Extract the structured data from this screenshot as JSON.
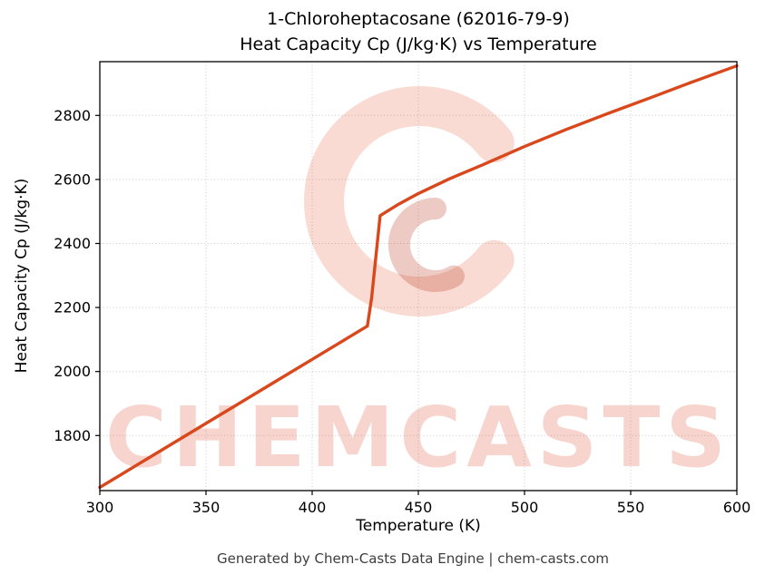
{
  "page": {
    "title_line1": "1-Chloroheptacosane (62016-79-9)",
    "title_line2": "Heat Capacity Cp (J/kg·K) vs Temperature",
    "footer": "Generated by Chem-Casts Data Engine | chem-casts.com",
    "watermark_text": "CHEMCASTS"
  },
  "chart_data": {
    "type": "line",
    "title": "1-Chloroheptacosane (62016-79-9)\nHeat Capacity Cp (J/kg·K) vs Temperature",
    "xlabel": "Temperature (K)",
    "ylabel": "Heat Capacity Cp (J/kg·K)",
    "xlim": [
      300,
      600
    ],
    "ylim": [
      1628,
      2968
    ],
    "xticks": [
      300,
      350,
      400,
      450,
      500,
      550,
      600
    ],
    "yticks": [
      1800,
      2000,
      2200,
      2400,
      2600,
      2800
    ],
    "grid": true,
    "legend": "none",
    "line_color": "#d9481c",
    "watermark_color": "#e0492a",
    "series": [
      {
        "name": "Heat Capacity Cp",
        "x": [
          300,
          320,
          340,
          360,
          380,
          400,
          410,
          420,
          426,
          428,
          432,
          440,
          450,
          465,
          480,
          500,
          520,
          540,
          560,
          580,
          600
        ],
        "y": [
          1638,
          1718,
          1798,
          1878,
          1958,
          2038,
          2078,
          2118,
          2142,
          2230,
          2487,
          2520,
          2556,
          2603,
          2645,
          2703,
          2757,
          2808,
          2857,
          2907,
          2955
        ]
      }
    ]
  }
}
